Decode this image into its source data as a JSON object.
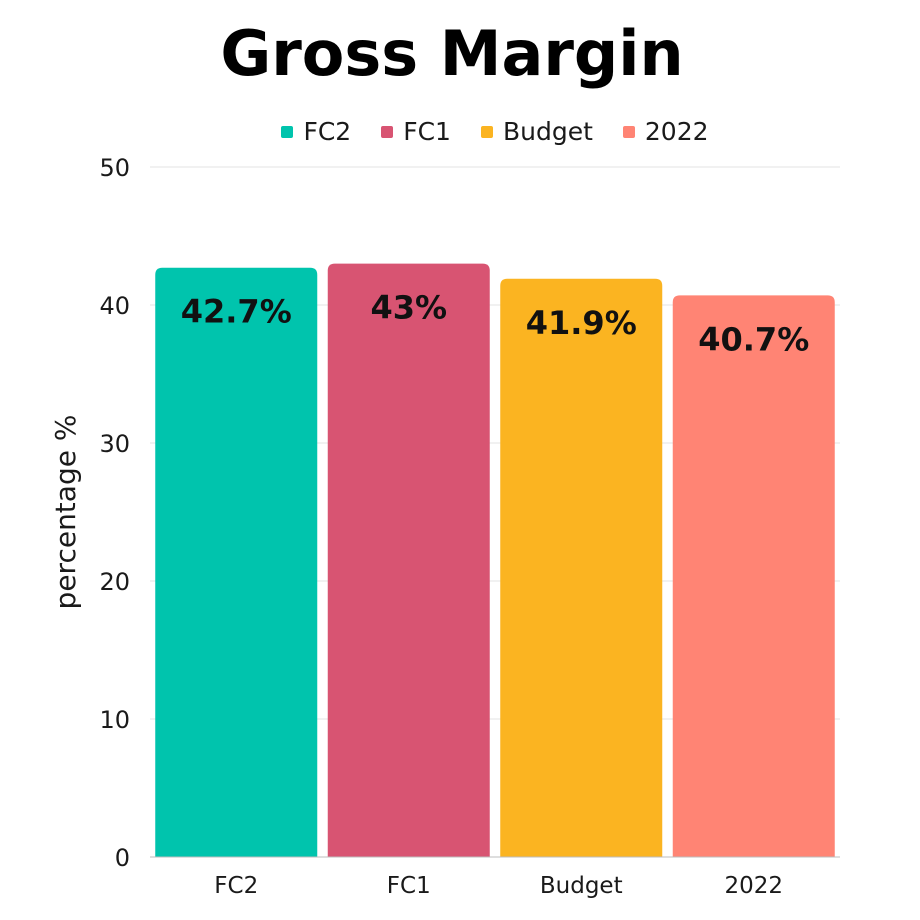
{
  "chart_data": {
    "type": "bar",
    "title": "Gross Margin",
    "ylabel": "percentage %",
    "xlabel": "",
    "categories": [
      "FC2",
      "FC1",
      "Budget",
      "2022"
    ],
    "values": [
      42.7,
      43,
      41.9,
      40.7
    ],
    "value_labels": [
      "42.7%",
      "43%",
      "41.9%",
      "40.7%"
    ],
    "colors": [
      "#00C4AD",
      "#D85472",
      "#FBB421",
      "#FF8474"
    ],
    "ylim": [
      0,
      50
    ],
    "yticks": [
      0,
      10,
      20,
      30,
      40,
      50
    ],
    "grid": true,
    "legend": {
      "placement": "top-center",
      "entries": [
        "FC2",
        "FC1",
        "Budget",
        "2022"
      ]
    }
  }
}
